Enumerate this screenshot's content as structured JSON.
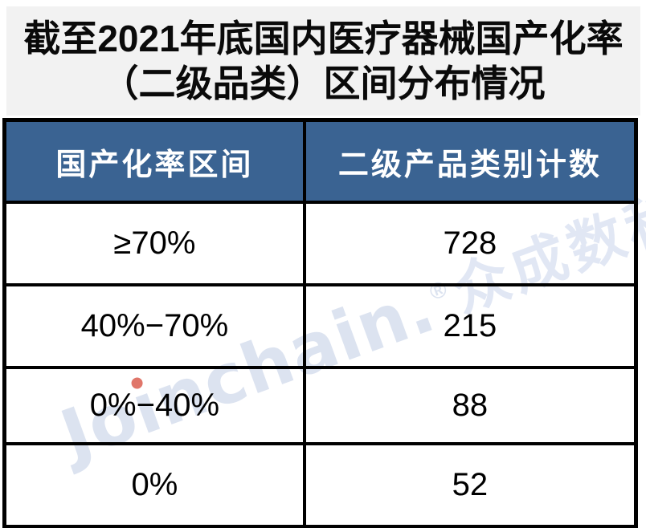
{
  "title": {
    "line1": "截至2021年底国内医疗器械国产化率",
    "line2": "（二级品类）区间分布情况"
  },
  "table": {
    "headers": [
      "国产化率区间",
      "二级产品类别计数"
    ],
    "rows": [
      {
        "range": "≥70%",
        "count": "728"
      },
      {
        "range": "40%−70%",
        "count": "215"
      },
      {
        "range": "0%−40%",
        "count": "88"
      },
      {
        "range": "0%",
        "count": "52"
      }
    ]
  },
  "watermark": {
    "en_start": "Jo",
    "dotless_i": "ı",
    "en_end": "nchain.",
    "reg_mark": "®",
    "cn": "众成数科"
  },
  "colors": {
    "header_bg": "#3a6392",
    "header_text": "#ffffff",
    "title_band_bg": "#f2f2f2",
    "table_border": "#000000",
    "watermark_text": "#dce3f0",
    "watermark_i_dot": "#e0766a"
  },
  "chart_data": {
    "type": "table",
    "title": "截至2021年底国内医疗器械国产化率（二级品类）区间分布情况",
    "columns": [
      "国产化率区间",
      "二级产品类别计数"
    ],
    "categories": [
      "≥70%",
      "40%−70%",
      "0%−40%",
      "0%"
    ],
    "values": [
      728,
      215,
      88,
      52
    ],
    "legend_position": "none",
    "grid": true,
    "watermark": "Joinchain.®众成数科"
  }
}
